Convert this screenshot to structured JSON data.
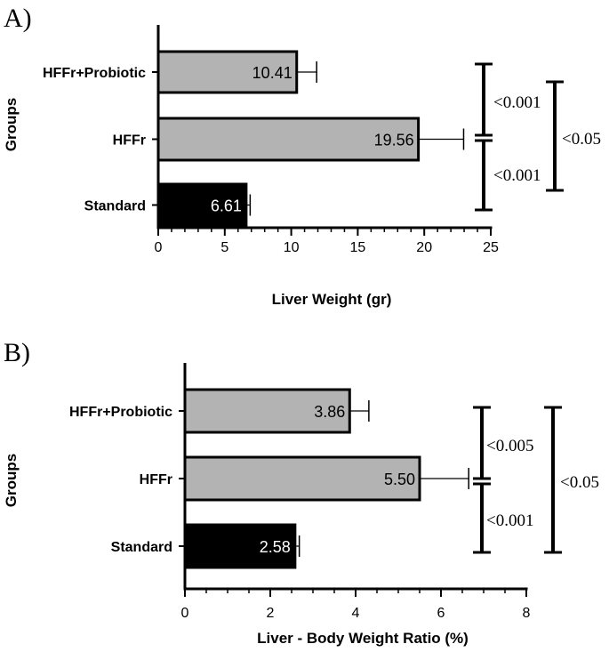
{
  "chart_data": [
    {
      "type": "bar",
      "orientation": "horizontal",
      "panel": "A)",
      "categories": [
        "HFFr+Probiotic",
        "HFFr",
        "Standard"
      ],
      "values": [
        10.41,
        19.56,
        6.61
      ],
      "value_labels": [
        "10.41",
        "19.56",
        "6.61"
      ],
      "error": [
        1.5,
        3.4,
        0.3
      ],
      "bar_colors": [
        "#b3b3b3",
        "#b3b3b3",
        "#000000"
      ],
      "xlabel": "Liver Weight (gr)",
      "ylabel": "Groups",
      "xlim": [
        0,
        25
      ],
      "xticks": [
        "0",
        "5",
        "10",
        "15",
        "20",
        "25"
      ],
      "grid": false,
      "significance": [
        {
          "label": "<0.001",
          "between": [
            "HFFr+Probiotic",
            "HFFr"
          ]
        },
        {
          "label": "<0.001",
          "between": [
            "HFFr",
            "Standard"
          ]
        },
        {
          "label": "<0.05",
          "between": [
            "HFFr+Probiotic",
            "Standard"
          ]
        }
      ]
    },
    {
      "type": "bar",
      "orientation": "horizontal",
      "panel": "B)",
      "categories": [
        "HFFr+Probiotic",
        "HFFr",
        "Standard"
      ],
      "values": [
        3.86,
        5.5,
        2.58
      ],
      "value_labels": [
        "3.86",
        "5.50",
        "2.58"
      ],
      "error": [
        0.45,
        1.15,
        0.1
      ],
      "bar_colors": [
        "#b3b3b3",
        "#b3b3b3",
        "#000000"
      ],
      "xlabel": "Liver - Body Weight Ratio (%)",
      "ylabel": "Groups",
      "xlim": [
        0,
        8
      ],
      "xticks": [
        "0",
        "2",
        "4",
        "6",
        "8"
      ],
      "grid": false,
      "significance": [
        {
          "label": "<0.005",
          "between": [
            "HFFr+Probiotic",
            "HFFr"
          ]
        },
        {
          "label": "<0.001",
          "between": [
            "HFFr",
            "Standard"
          ]
        },
        {
          "label": "<0.05",
          "between": [
            "HFFr+Probiotic",
            "Standard"
          ]
        }
      ]
    }
  ]
}
